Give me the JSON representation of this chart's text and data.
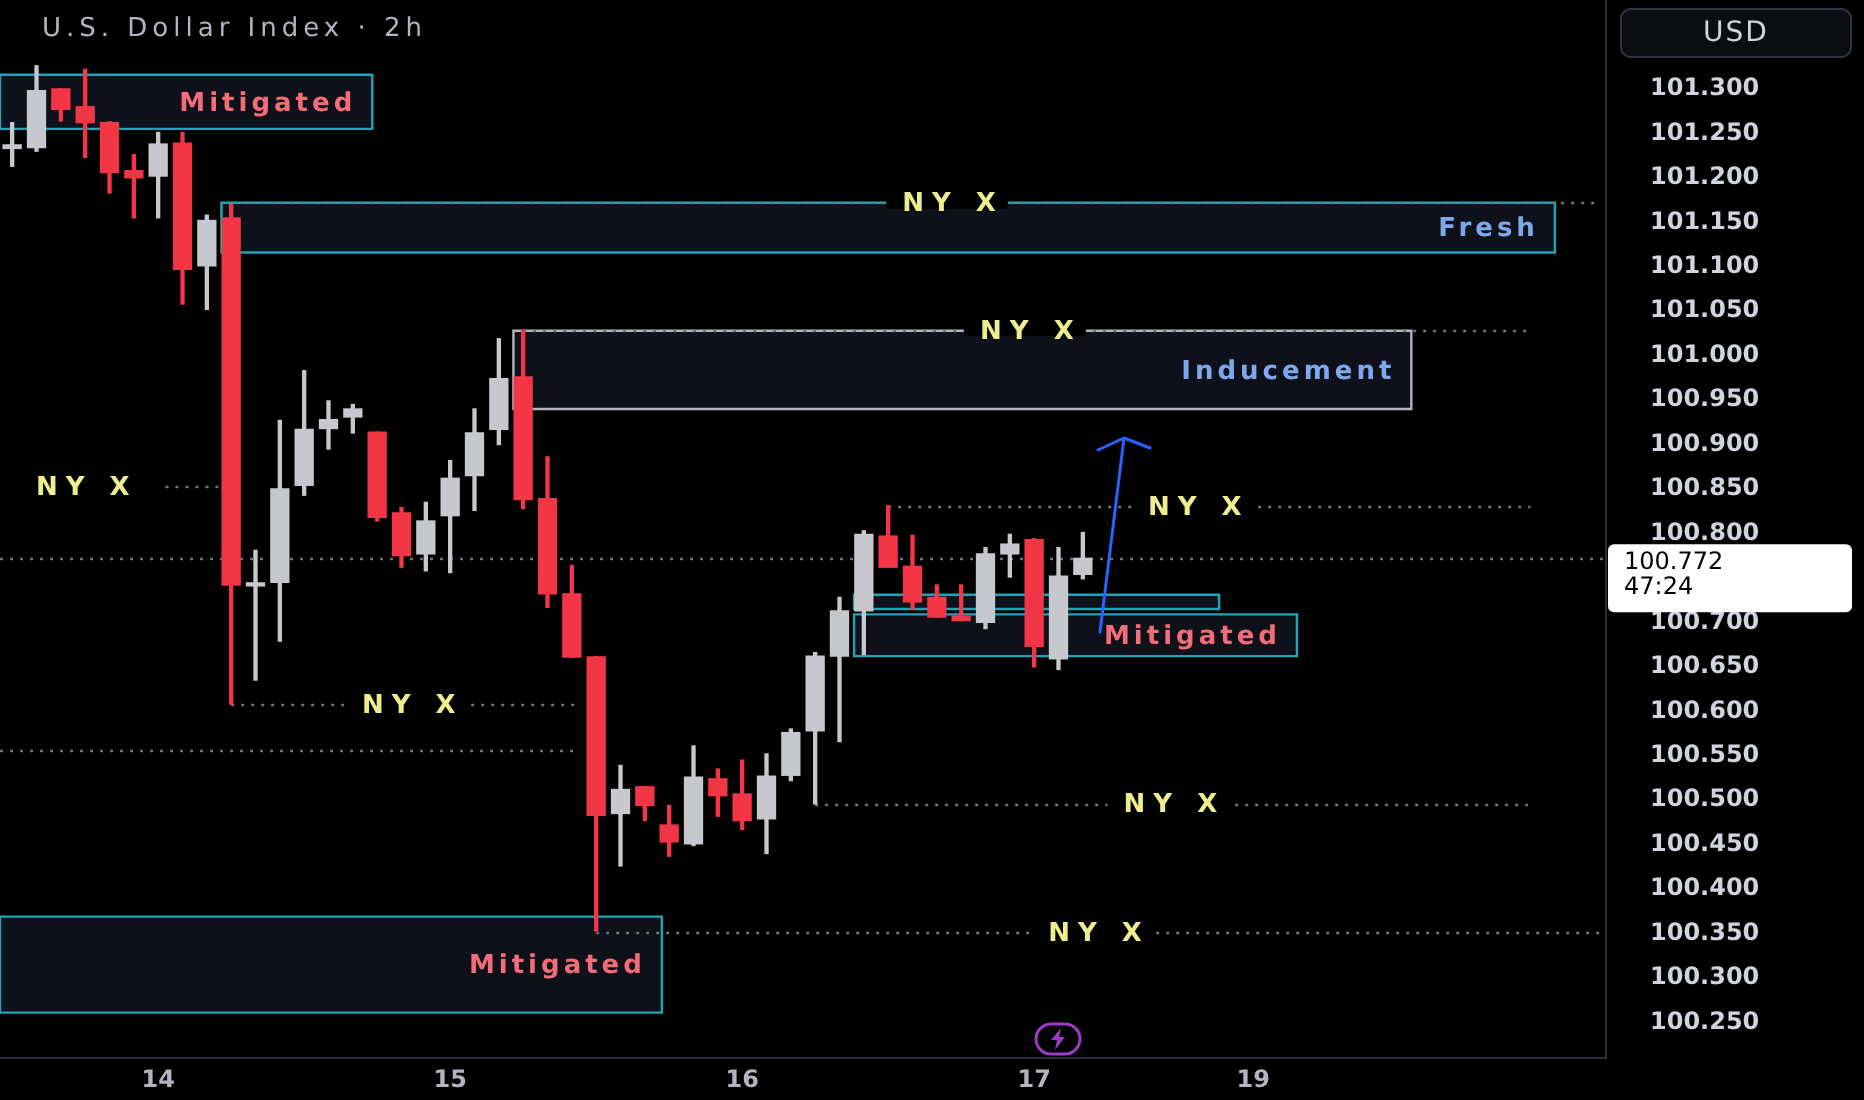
{
  "chart_data": {
    "type": "candlestick",
    "title": "U.S. Dollar Index · 2h",
    "ylabel": "USD",
    "categories": [
      null,
      null,
      null,
      null,
      null,
      null,
      "14",
      null,
      null,
      null,
      null,
      null,
      null,
      null,
      null,
      null,
      null,
      null,
      "15",
      null,
      null,
      null,
      null,
      null,
      null,
      null,
      null,
      null,
      null,
      null,
      "16",
      null,
      null,
      null,
      null,
      null,
      null,
      null,
      null,
      null,
      null,
      null,
      "17",
      null,
      null,
      null,
      null,
      null,
      null,
      null,
      null,
      "19",
      null,
      null,
      null,
      null,
      null,
      null,
      null,
      null,
      null,
      null,
      null,
      null,
      null,
      null
    ],
    "ohlc": [
      [
        101.233,
        101.262,
        101.213,
        101.237
      ],
      [
        101.234,
        101.326,
        101.23,
        101.298
      ],
      [
        101.3,
        101.3,
        101.264,
        101.277
      ],
      [
        101.28,
        101.322,
        101.223,
        101.262
      ],
      [
        101.262,
        101.263,
        101.183,
        101.206
      ],
      [
        101.208,
        101.226,
        101.155,
        101.2
      ],
      [
        101.202,
        101.251,
        101.155,
        101.238
      ],
      [
        101.239,
        101.251,
        101.058,
        101.097
      ],
      [
        101.101,
        101.158,
        101.052,
        101.152
      ],
      [
        101.155,
        101.17,
        100.608,
        100.742
      ],
      [
        100.741,
        100.781,
        100.635,
        100.743
      ],
      [
        100.745,
        100.927,
        100.679,
        100.85
      ],
      [
        100.854,
        100.983,
        100.843,
        100.917
      ],
      [
        100.918,
        100.949,
        100.895,
        100.928
      ],
      [
        100.931,
        100.945,
        100.913,
        100.94
      ],
      [
        100.914,
        100.914,
        100.814,
        100.818
      ],
      [
        100.823,
        100.829,
        100.762,
        100.775
      ],
      [
        100.777,
        100.835,
        100.758,
        100.814
      ],
      [
        100.82,
        100.882,
        100.756,
        100.862
      ],
      [
        100.865,
        100.94,
        100.826,
        100.913
      ],
      [
        100.917,
        101.019,
        100.9,
        100.974
      ],
      [
        100.976,
        101.028,
        100.828,
        100.838
      ],
      [
        100.839,
        100.886,
        100.717,
        100.732
      ],
      [
        100.732,
        100.764,
        100.661,
        100.661
      ],
      [
        100.661,
        100.661,
        100.353,
        100.483
      ],
      [
        100.485,
        100.539,
        100.426,
        100.512
      ],
      [
        100.515,
        100.515,
        100.477,
        100.494
      ],
      [
        100.472,
        100.494,
        100.437,
        100.453
      ],
      [
        100.451,
        100.561,
        100.449,
        100.526
      ],
      [
        100.524,
        100.535,
        100.482,
        100.505
      ],
      [
        100.507,
        100.545,
        100.467,
        100.477
      ],
      [
        100.479,
        100.552,
        100.44,
        100.527
      ],
      [
        100.528,
        100.58,
        100.522,
        100.576
      ],
      [
        100.578,
        100.666,
        100.496,
        100.662
      ],
      [
        100.662,
        100.728,
        100.566,
        100.713
      ],
      [
        100.713,
        100.803,
        100.664,
        100.799
      ],
      [
        100.797,
        100.831,
        100.762,
        100.762
      ],
      [
        100.763,
        100.798,
        100.715,
        100.723
      ],
      [
        100.728,
        100.742,
        100.706,
        100.706
      ],
      [
        100.707,
        100.742,
        100.702,
        100.702
      ],
      [
        100.7,
        100.784,
        100.693,
        100.777
      ],
      [
        100.777,
        100.799,
        100.751,
        100.788
      ],
      [
        100.793,
        100.794,
        100.65,
        100.673
      ],
      [
        100.659,
        100.784,
        100.647,
        100.752
      ],
      [
        100.754,
        100.801,
        100.749,
        100.772
      ],
      null,
      null,
      null,
      null,
      null,
      null,
      null,
      null,
      null,
      null,
      null,
      null,
      null,
      null,
      null,
      null,
      null,
      null,
      null,
      null,
      null
    ],
    "colors": [
      "#c7c8cd",
      "#c7c8cd",
      "#f23645",
      "#f23645",
      "#f23645",
      "#f23645",
      "#c7c8cd",
      "#f23645",
      "#c7c8cd",
      "#f23645",
      "#c7c8cd",
      "#c7c8cd",
      "#c7c8cd",
      "#c7c8cd",
      "#c7c8cd",
      "#f23645",
      "#f23645",
      "#c7c8cd",
      "#c7c8cd",
      "#c7c8cd",
      "#c7c8cd",
      "#f23645",
      "#f23645",
      "#f23645",
      "#f23645",
      "#c7c8cd",
      "#f23645",
      "#f23645",
      "#c7c8cd",
      "#f23645",
      "#f23645",
      "#c7c8cd",
      "#c7c8cd",
      "#c7c8cd",
      "#c7c8cd",
      "#c7c8cd",
      "#f23645",
      "#f23645",
      "#f23645",
      "#f23645",
      "#c7c8cd",
      "#c7c8cd",
      "#f23645",
      "#c7c8cd",
      "#c7c8cd",
      null,
      null,
      null,
      null,
      null,
      null,
      null,
      null,
      null,
      null,
      null,
      null,
      null,
      null,
      null,
      null,
      null,
      null,
      null,
      null,
      null
    ],
    "ylim": [
      100.21,
      101.4
    ],
    "yticks": [
      {
        "value": 100.25,
        "label": "100.250"
      },
      {
        "value": 100.3,
        "label": "100.300"
      },
      {
        "value": 100.35,
        "label": "100.350"
      },
      {
        "value": 100.4,
        "label": "100.400"
      },
      {
        "value": 100.45,
        "label": "100.450"
      },
      {
        "value": 100.5,
        "label": "100.500"
      },
      {
        "value": 100.55,
        "label": "100.550"
      },
      {
        "value": 100.6,
        "label": "100.600"
      },
      {
        "value": 100.65,
        "label": "100.650"
      },
      {
        "value": 100.7,
        "label": "100.700"
      },
      {
        "value": 100.8,
        "label": "100.800"
      },
      {
        "value": 100.85,
        "label": "100.850"
      },
      {
        "value": 100.9,
        "label": "100.900"
      },
      {
        "value": 100.95,
        "label": "100.950"
      },
      {
        "value": 101.0,
        "label": "101.000"
      },
      {
        "value": 101.05,
        "label": "101.050"
      },
      {
        "value": 101.1,
        "label": "101.100"
      },
      {
        "value": 101.15,
        "label": "101.150"
      },
      {
        "value": 101.2,
        "label": "101.200"
      },
      {
        "value": 101.25,
        "label": "101.250"
      },
      {
        "value": 101.3,
        "label": "101.300"
      }
    ],
    "ref_lines": [
      {
        "axis": "y",
        "value": 101.172,
        "label": "NY X",
        "color": "#6f727b",
        "line_style": "dotted"
      },
      {
        "axis": "y",
        "value": 101.029,
        "label": "NY X",
        "color": "#6f727b",
        "line_style": "dotted"
      },
      {
        "axis": "y",
        "value": 100.853,
        "label": "NY X",
        "color": "#6f727b",
        "line_style": "dotted"
      },
      {
        "axis": "y",
        "value": 100.831,
        "label": "NY X",
        "color": "#6f727b",
        "line_style": "dotted"
      },
      {
        "axis": "y",
        "value": 100.772,
        "label": "100.772\n47:24",
        "color": "#6f727b",
        "line_style": "dotted"
      },
      {
        "axis": "y",
        "value": 100.608,
        "label": "NY X",
        "color": "#6f727b",
        "line_style": "dotted"
      },
      {
        "axis": "y",
        "value": 100.557,
        "label": null,
        "color": "#6f727b",
        "line_style": "dotted"
      },
      {
        "axis": "y",
        "value": 100.496,
        "label": "NY X",
        "color": "#6f727b",
        "line_style": "dotted"
      },
      {
        "axis": "y",
        "value": 100.352,
        "label": "NY X",
        "color": "#6f727b",
        "line_style": "dotted"
      }
    ],
    "bands": [
      {
        "axis": "y",
        "from": 101.255,
        "to": 101.316,
        "label": "Mitigated",
        "color": "#0e1119"
      },
      {
        "axis": "y",
        "from": 101.116,
        "to": 101.172,
        "label": "Fresh",
        "color": "#0e1119"
      },
      {
        "axis": "y",
        "from": 100.94,
        "to": 101.028,
        "label": "Inducement",
        "color": "#0e1119"
      },
      {
        "axis": "y",
        "from": 100.662,
        "to": 100.709,
        "label": "Mitigated",
        "color": "#0e1119"
      },
      {
        "axis": "y",
        "from": 100.715,
        "to": 100.731,
        "label": null,
        "color": "#0e1119"
      },
      {
        "axis": "y",
        "from": 100.261,
        "to": 100.369,
        "label": "Mitigated",
        "color": "#0e1119"
      }
    ]
  }
}
